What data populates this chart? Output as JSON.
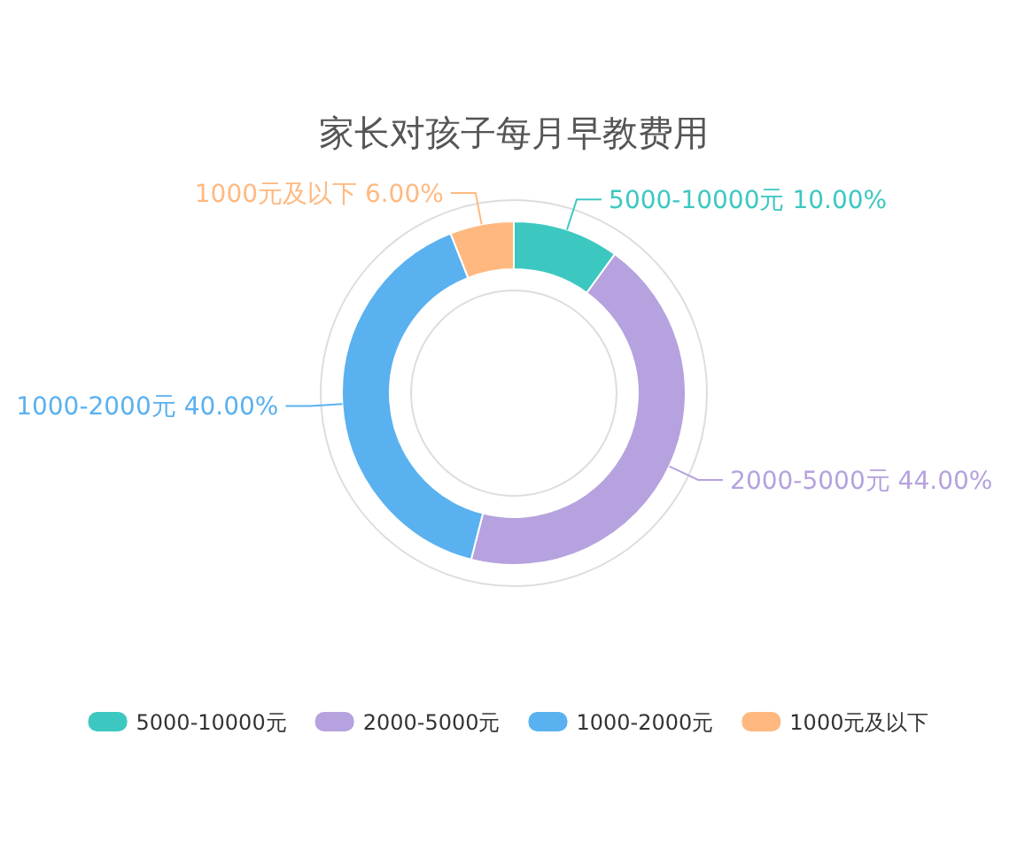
{
  "chart_data": {
    "type": "donut",
    "title": "家长对孩子每月早教费用",
    "categories": [
      "5000-10000元",
      "2000-5000元",
      "1000-2000元",
      "1000元及以下"
    ],
    "values": [
      10,
      44,
      40,
      6
    ],
    "value_labels": [
      "10.00%",
      "44.00%",
      "40.00%",
      "6.00%"
    ],
    "colors": [
      "#3cc8c0",
      "#b6a2de",
      "#5ab1ef",
      "#ffb980"
    ],
    "legend": "bottom"
  }
}
